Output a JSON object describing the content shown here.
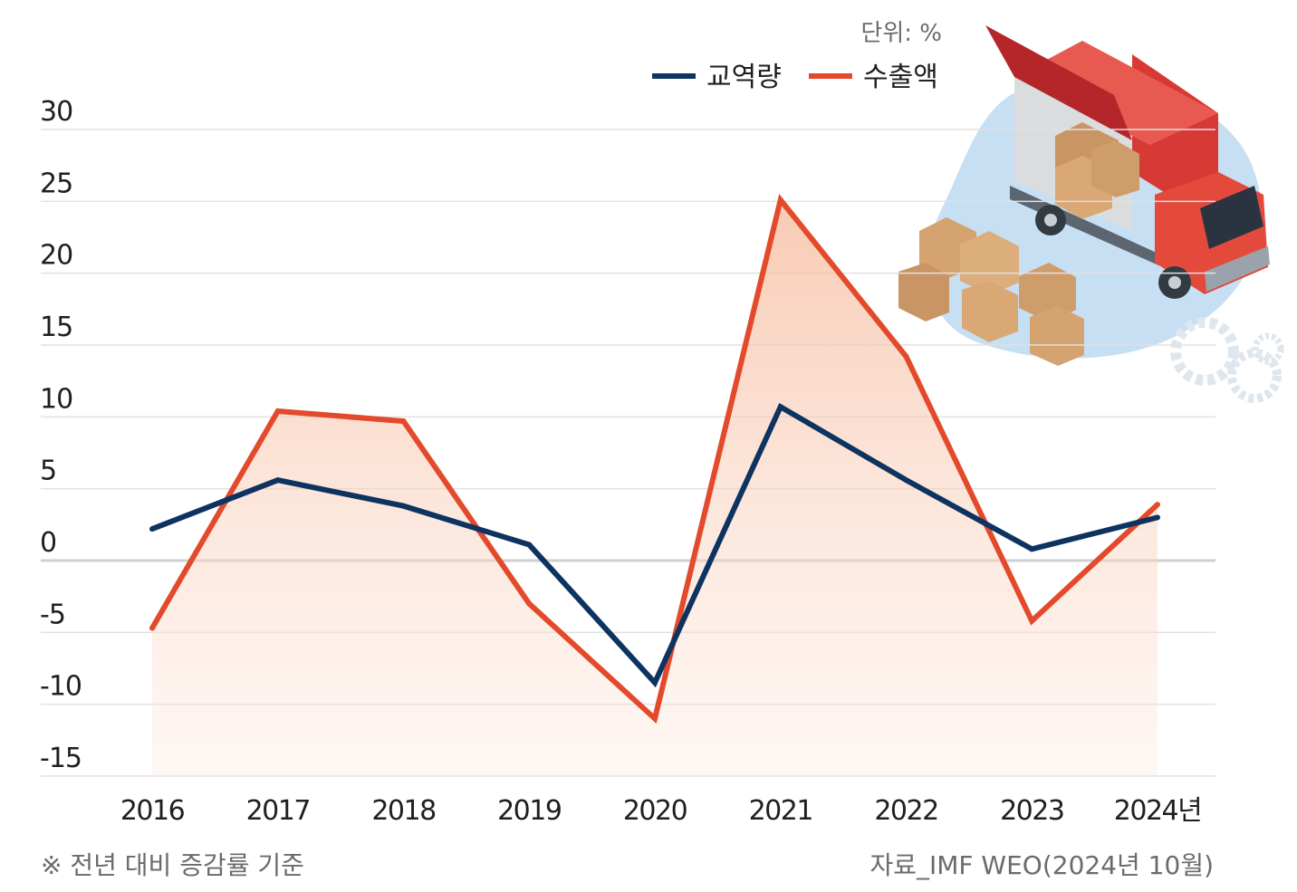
{
  "chart_data": {
    "type": "line",
    "unit": "단위: %",
    "x": [
      "2016",
      "2017",
      "2018",
      "2019",
      "2020",
      "2021",
      "2022",
      "2023",
      "2024년"
    ],
    "series": [
      {
        "name": "교역량",
        "color": "#0d3360",
        "values": [
          2.2,
          5.6,
          3.8,
          1.1,
          -8.5,
          10.7,
          5.6,
          0.8,
          3.0
        ]
      },
      {
        "name": "수출액",
        "color": "#e34a2c",
        "values": [
          -4.7,
          10.4,
          9.7,
          -3.0,
          -11.0,
          25.1,
          14.2,
          -4.2,
          3.9
        ]
      }
    ],
    "y_ticks": [
      30,
      25,
      20,
      15,
      10,
      5,
      0,
      -5,
      -10,
      -15
    ],
    "ylim": [
      -15,
      30
    ],
    "grid": true,
    "legend_position": "top-right",
    "footnote": "※ 전년 대비 증감률 기준",
    "source": "자료_IMF WEO(2024년 10월)",
    "illustration": "delivery-truck-with-boxes"
  }
}
